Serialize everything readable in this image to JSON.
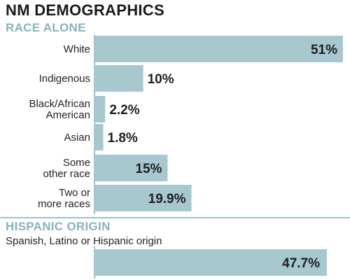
{
  "chart_data": [
    {
      "type": "bar",
      "orientation": "horizontal",
      "title": "NM DEMOGRAPHICS",
      "subtitle": "RACE ALONE",
      "categories": [
        "White",
        "Indigenous",
        "Black/African American",
        "Asian",
        "Some other race",
        "Two or more races"
      ],
      "category_lines": [
        [
          "White"
        ],
        [
          "Indigenous"
        ],
        [
          "Black/African",
          "American"
        ],
        [
          "Asian"
        ],
        [
          "Some",
          "other race"
        ],
        [
          "Two or",
          "more races"
        ]
      ],
      "values": [
        51,
        10,
        2.2,
        1.8,
        15,
        19.9
      ],
      "value_labels": [
        "51%",
        "10%",
        "2.2%",
        "1.8%",
        "15%",
        "19.9%"
      ],
      "xlim": [
        0,
        51
      ],
      "bar_color": "#a8c8d0",
      "grid": false,
      "legend": "none"
    },
    {
      "type": "bar",
      "orientation": "horizontal",
      "title": "HISPANIC ORIGIN",
      "subtitle": "Spanish, Latino or Hispanic origin",
      "categories": [
        "Spanish, Latino or Hispanic origin"
      ],
      "values": [
        47.7
      ],
      "value_labels": [
        "47.7%"
      ],
      "xlim": [
        0,
        51
      ],
      "bar_color": "#a8c8d0",
      "grid": false,
      "legend": "none"
    }
  ],
  "colors": {
    "accent": "#86b3bc",
    "bar": "#a8c8d0",
    "rule": "#9cc2cb"
  }
}
